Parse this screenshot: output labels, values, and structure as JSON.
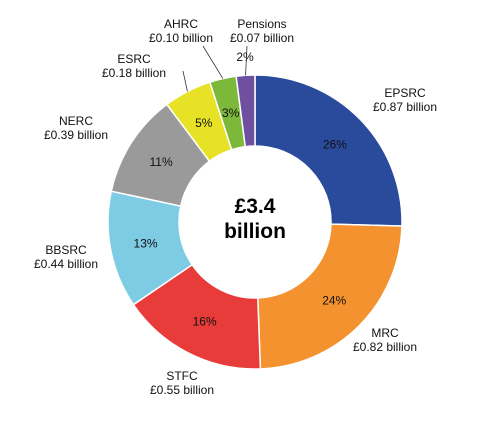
{
  "chart_data": {
    "type": "pie",
    "variant": "donut",
    "center_label": [
      "£3.4",
      "billion"
    ],
    "slices": [
      {
        "name": "EPSRC",
        "value_label": "£0.87 billion",
        "value": 0.87,
        "percent_label": "26%",
        "color": "#2a4a9c"
      },
      {
        "name": "MRC",
        "value_label": "£0.82 billion",
        "value": 0.82,
        "percent_label": "24%",
        "color": "#f3922e"
      },
      {
        "name": "STFC",
        "value_label": "£0.55 billion",
        "value": 0.55,
        "percent_label": "16%",
        "color": "#e83c3b"
      },
      {
        "name": "BBSRC",
        "value_label": "£0.44 billion",
        "value": 0.44,
        "percent_label": "13%",
        "color": "#7ecbe4"
      },
      {
        "name": "NERC",
        "value_label": "£0.39 billion",
        "value": 0.39,
        "percent_label": "11%",
        "color": "#9a9a9a"
      },
      {
        "name": "ESRC",
        "value_label": "£0.18 billion",
        "value": 0.18,
        "percent_label": "5%",
        "color": "#e8e226"
      },
      {
        "name": "AHRC",
        "value_label": "£0.10 billion",
        "value": 0.1,
        "percent_label": "3%",
        "color": "#7cb83a"
      },
      {
        "name": "Pensions",
        "value_label": "£0.07 billion",
        "value": 0.07,
        "percent_label": "2%",
        "color": "#6f4fa0"
      }
    ]
  }
}
